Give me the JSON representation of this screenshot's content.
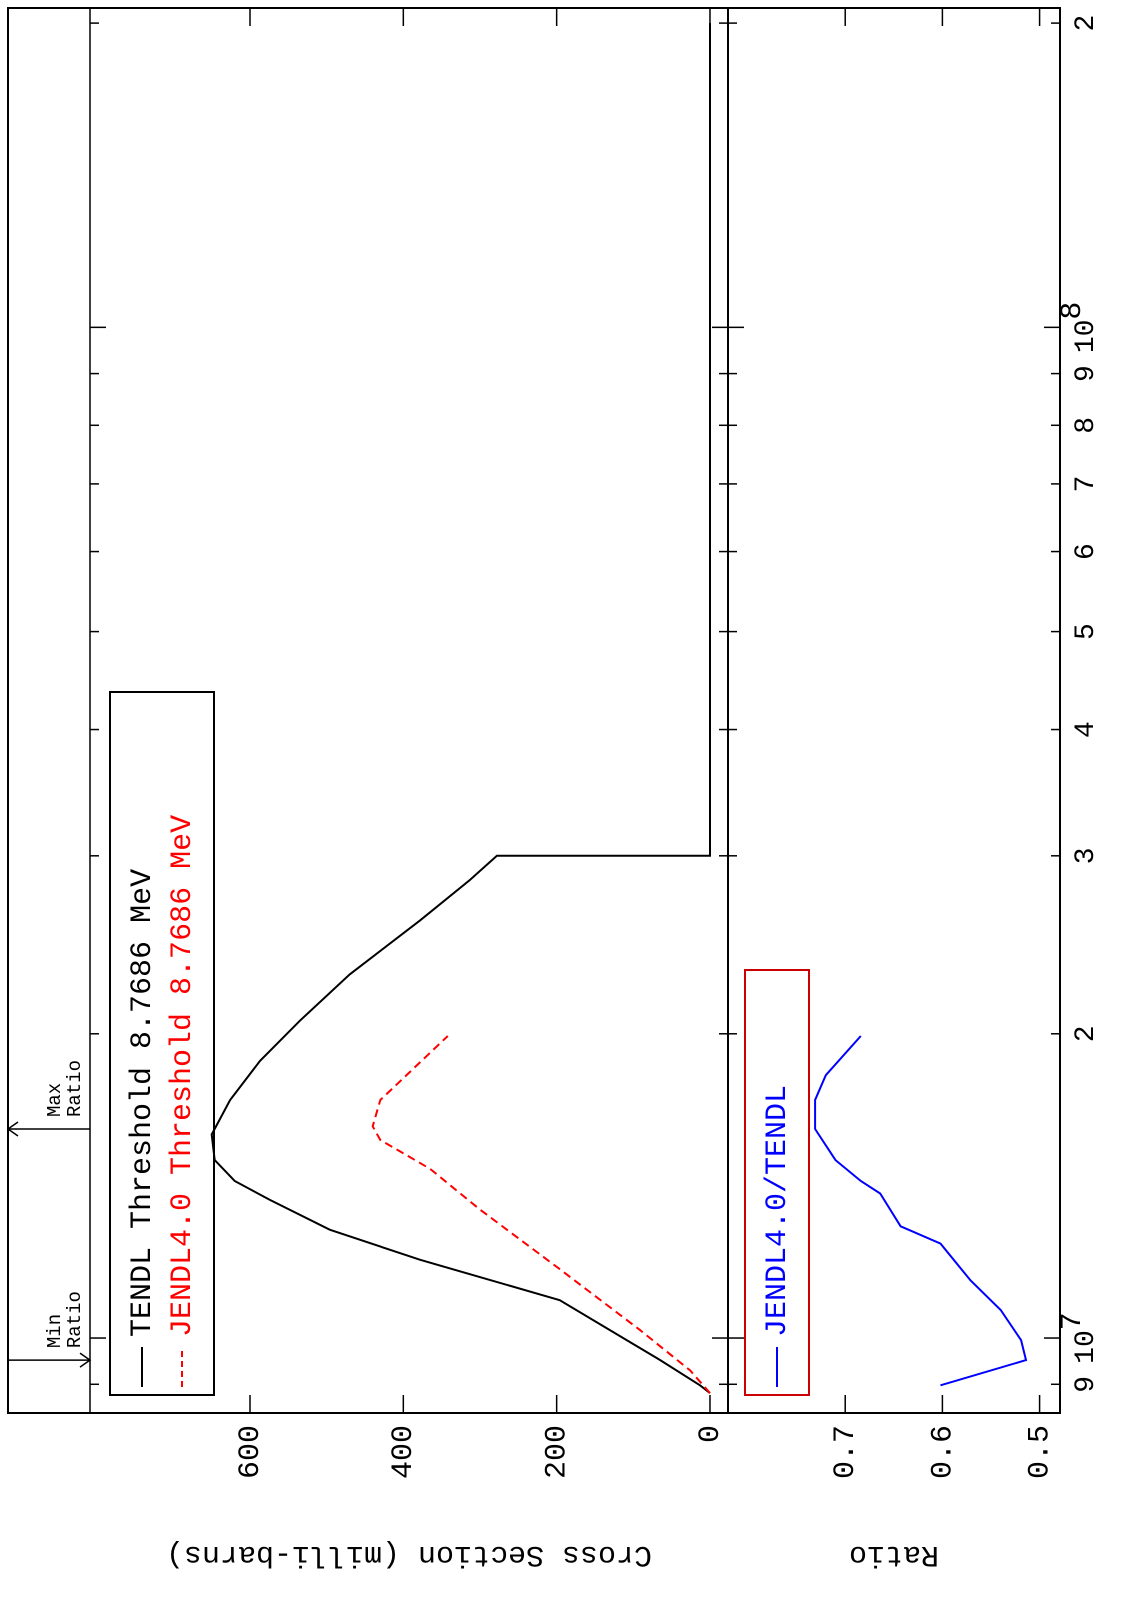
{
  "chart_data": [
    {
      "type": "line",
      "y_label": "Cross Section (milli-barns)",
      "log_x": true,
      "xlim": [
        8430000,
        207000000
      ],
      "ylim": [
        -23.5,
        808.7
      ],
      "yticks": [
        0,
        200,
        400,
        600
      ],
      "legend_color": "#000000",
      "annotations": [
        {
          "lines": [
            "Min",
            "Ratio"
          ],
          "x": 9510000,
          "head": "bottom"
        },
        {
          "lines": [
            "Max",
            "Ratio"
          ],
          "x": 16100000,
          "head": "top"
        }
      ],
      "series": [
        {
          "name": "TENDL Threshold 8.7686 MeV",
          "color": "#000000",
          "dash": false,
          "x": [
            8820000,
            8980000,
            9510000,
            10900000,
            11950000,
            12800000,
            13700000,
            14300000,
            15000000,
            15900000,
            17200000,
            18800000,
            20600000,
            22900000,
            25900000,
            28400000,
            30000000,
            30000000,
            200000000
          ],
          "values": [
            0,
            13,
            65,
            196,
            378,
            496,
            574,
            620,
            646,
            650,
            626,
            587,
            535,
            470,
            378,
            313,
            278,
            0,
            0
          ]
        },
        {
          "name": "JENDL4.0 Threshold 8.7686 MeV",
          "color": "#ff0000",
          "dash": true,
          "x": [
            8820000,
            9290000,
            10180000,
            11700000,
            13400000,
            14700000,
            15700000,
            16200000,
            17200000,
            19900000
          ],
          "values": [
            0,
            26,
            91,
            196,
            300,
            365,
            430,
            440,
            430,
            342
          ]
        }
      ]
    },
    {
      "type": "line",
      "y_label": "Ratio",
      "log_x": true,
      "xlim": [
        8430000,
        207000000
      ],
      "ylim": [
        0.479,
        0.8206
      ],
      "yticks": [
        0.5,
        0.6,
        0.7
      ],
      "xticks": [
        {
          "value": 9000000,
          "label": "9"
        },
        {
          "value": 10000000,
          "label": "10",
          "sup": "7"
        },
        {
          "value": 20000000,
          "label": "2"
        },
        {
          "value": 30000000,
          "label": "3"
        },
        {
          "value": 40000000,
          "label": "4"
        },
        {
          "value": 50000000,
          "label": "5"
        },
        {
          "value": 60000000,
          "label": "6"
        },
        {
          "value": 70000000,
          "label": "7"
        },
        {
          "value": 80000000,
          "label": "8"
        },
        {
          "value": 90000000,
          "label": "9"
        },
        {
          "value": 100000000,
          "label": "10",
          "sup": "8"
        },
        {
          "value": 200000000,
          "label": "2"
        }
      ],
      "legend_color": "#cc0000",
      "series": [
        {
          "name": "JENDL4.0/TENDL",
          "color": "#0000ff",
          "dash": false,
          "x": [
            8980000,
            9510000,
            9950000,
            10660000,
            11400000,
            12400000,
            12900000,
            13900000,
            14300000,
            15000000,
            16100000,
            17200000,
            18200000,
            19900000
          ],
          "values": [
            0.602,
            0.514,
            0.519,
            0.54,
            0.571,
            0.602,
            0.643,
            0.664,
            0.684,
            0.71,
            0.731,
            0.731,
            0.72,
            0.684
          ]
        }
      ]
    }
  ]
}
